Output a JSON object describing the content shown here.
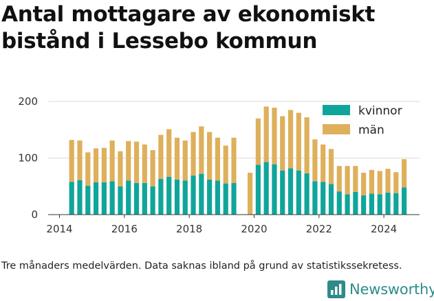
{
  "title": "Antal mottagare av ekonomiskt bistånd i Lessebo kommun",
  "footnote": "Tre månaders medelvärden. Data saknas ibland på grund av statistikssekretess.",
  "brand": {
    "name": "Newsworthy",
    "icon": "newsworthy-chart-logo-icon"
  },
  "colors": {
    "kvinnor": "#10a59a",
    "man": "#deb05c",
    "grid": "#d9d9d9",
    "brand": "#2e8b8b"
  },
  "chart_data": {
    "type": "bar",
    "stacked": true,
    "title": "Antal mottagare av ekonomiskt bistånd i Lessebo kommun",
    "xlabel": "",
    "ylabel": "",
    "ylim": [
      0,
      200
    ],
    "yticks": [
      0,
      100,
      200
    ],
    "xlim": [
      2013.65,
      2025.1
    ],
    "xticks": [
      2014,
      2016,
      2018,
      2020,
      2022,
      2024
    ],
    "grid": true,
    "legend_position": "top-right",
    "x": [
      2014.375,
      2014.625,
      2014.875,
      2015.125,
      2015.375,
      2015.625,
      2015.875,
      2016.125,
      2016.375,
      2016.625,
      2016.875,
      2017.125,
      2017.375,
      2017.625,
      2017.875,
      2018.125,
      2018.375,
      2018.625,
      2018.875,
      2019.125,
      2019.375,
      2019.875,
      2020.125,
      2020.375,
      2020.625,
      2020.875,
      2021.125,
      2021.375,
      2021.625,
      2021.875,
      2022.125,
      2022.375,
      2022.625,
      2022.875,
      2023.125,
      2023.375,
      2023.625,
      2023.875,
      2024.125,
      2024.375,
      2024.625
    ],
    "series": [
      {
        "name": "kvinnor",
        "values": [
          58,
          61,
          51,
          57,
          57,
          59,
          50,
          60,
          56,
          56,
          50,
          63,
          67,
          62,
          60,
          69,
          72,
          62,
          60,
          55,
          56,
          0,
          88,
          93,
          89,
          78,
          82,
          78,
          73,
          59,
          58,
          54,
          41,
          36,
          40,
          34,
          37,
          36,
          39,
          38,
          48
        ]
      },
      {
        "name": "män",
        "values": [
          74,
          70,
          59,
          60,
          61,
          72,
          62,
          70,
          73,
          68,
          64,
          78,
          84,
          74,
          71,
          77,
          84,
          84,
          76,
          67,
          80,
          74,
          82,
          98,
          100,
          96,
          103,
          102,
          99,
          74,
          66,
          62,
          45,
          50,
          46,
          40,
          42,
          41,
          42,
          37,
          50
        ]
      }
    ]
  }
}
